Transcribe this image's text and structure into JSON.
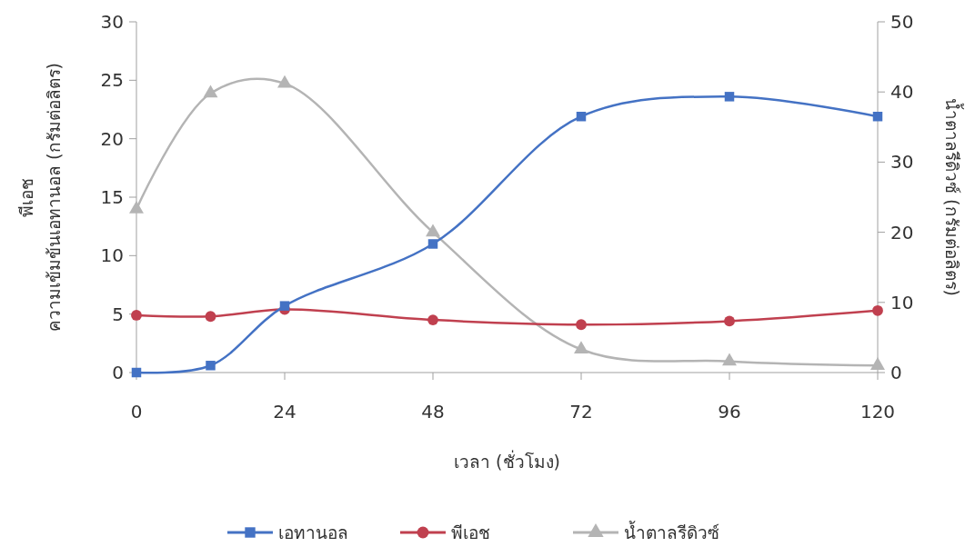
{
  "chart_data": {
    "type": "line",
    "x": [
      0,
      12,
      24,
      48,
      72,
      96,
      120
    ],
    "xlim": [
      0,
      120
    ],
    "xticks": [
      0,
      24,
      48,
      72,
      96,
      120
    ],
    "ylim": [
      0,
      30
    ],
    "yticks": [
      0,
      5,
      10,
      15,
      20,
      25,
      30
    ],
    "y2lim": [
      0,
      50
    ],
    "y2ticks": [
      0,
      10,
      20,
      30,
      40,
      50
    ],
    "xlabel": "เวลา (ชั่วโมง)",
    "ylabel": "พีเอช\nความเข้มข้นเอทานอล (กรัมต่อลิตร)",
    "y2label": "น้ำตาลรีดิวซ์ (กรัมต่อลิตร)",
    "grid": false,
    "legend": "bottom",
    "series": [
      {
        "name": "เอทานอล",
        "color": "#4472c4",
        "marker": "square",
        "values": [
          0,
          0.6,
          5.7,
          11.0,
          21.9,
          23.6,
          21.9
        ]
      },
      {
        "name": "พีเอช",
        "color": "#c0404f",
        "marker": "circle",
        "values": [
          4.9,
          4.8,
          5.4,
          4.5,
          4.1,
          4.4,
          5.3
        ]
      },
      {
        "name": "น้ำตาลรีดิวซ์",
        "color": "#b4b4b4",
        "marker": "triangle",
        "axis": "y2",
        "values": [
          23.3,
          39.8,
          41.2,
          20.0,
          3.3,
          1.6,
          1.0
        ]
      }
    ]
  }
}
